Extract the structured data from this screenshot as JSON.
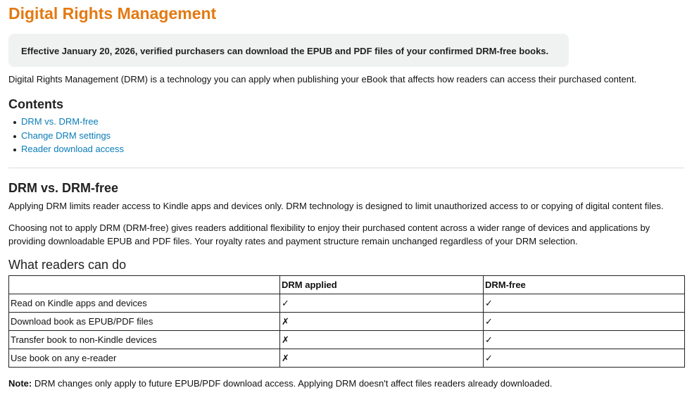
{
  "title": "Digital Rights Management",
  "banner": "Effective January 20, 2026, verified purchasers can download the EPUB and PDF files of your confirmed DRM-free books.",
  "intro": "Digital Rights Management (DRM) is a technology you can apply when publishing your eBook that affects how readers can access their purchased content.",
  "contents": {
    "heading": "Contents",
    "links": [
      "DRM vs. DRM-free",
      "Change DRM settings",
      "Reader download access"
    ]
  },
  "section": {
    "heading": "DRM vs. DRM-free",
    "p1": "Applying DRM limits reader access to Kindle apps and devices only. DRM technology is designed to limit unauthorized access to or copying of digital content files.",
    "p2": "Choosing not to apply DRM (DRM-free) gives readers additional flexibility to enjoy their purchased content across a wider range of devices and applications by providing downloadable EPUB and PDF files. Your royalty rates and payment structure remain unchanged regardless of your DRM selection.",
    "subheading": "What readers can do"
  },
  "table": {
    "headers": [
      "",
      "DRM applied",
      "DRM-free"
    ],
    "rows": [
      [
        "Read on Kindle apps and devices",
        "✓",
        "✓"
      ],
      [
        "Download book as EPUB/PDF files",
        "✗",
        "✓"
      ],
      [
        "Transfer book to non-Kindle devices",
        "✗",
        "✓"
      ],
      [
        "Use book on any e-reader",
        "✗",
        "✓"
      ]
    ]
  },
  "note": {
    "label": "Note:",
    "text": " DRM changes only apply to future EPUB/PDF download access. Applying DRM doesn't affect files readers already downloaded."
  },
  "colors": {
    "title": "#e47911",
    "link": "#0a7cb8",
    "banner_bg": "#f0f1f1"
  }
}
